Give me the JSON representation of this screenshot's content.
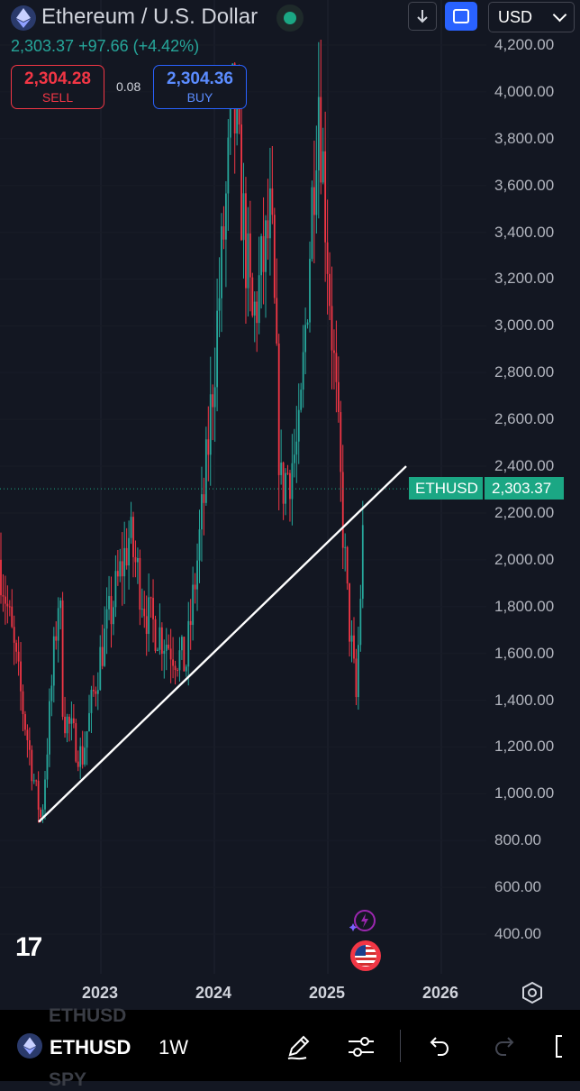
{
  "header": {
    "title": "Ethereum / U.S. Dollar",
    "change_line": "2,303.37  +97.66 (+4.42%)",
    "currency": "USD",
    "sell_price": "2,304.28",
    "sell_label": "SELL",
    "spread": "0.08",
    "buy_price": "2,304.36",
    "buy_label": "BUY"
  },
  "price_tag": {
    "symbol": "ETHUSD",
    "price": "2,303.37"
  },
  "y_axis": [
    "4,200.00",
    "4,000.00",
    "3,800.00",
    "3,600.00",
    "3,400.00",
    "3,200.00",
    "3,000.00",
    "2,800.00",
    "2,600.00",
    "2,400.00",
    "2,200.00",
    "2,000.00",
    "1,800.00",
    "1,600.00",
    "1,400.00",
    "1,200.00",
    "1,000.00",
    "800.00",
    "600.00",
    "400.00"
  ],
  "x_axis": [
    "2023",
    "2024",
    "2025",
    "2026"
  ],
  "toolbar": {
    "symbol": "ETHUSD",
    "interval": "1W",
    "ghost_above": "ETHUSD",
    "ghost_below": "SPY"
  },
  "logo": "17",
  "colors": {
    "up": "#26a69a",
    "down": "#f23645",
    "accent": "#2962ff",
    "tag": "#1ba784"
  },
  "chart_data": {
    "type": "candlestick",
    "interval": "1W",
    "ylim": [
      400,
      4200
    ],
    "series": [
      {
        "name": "ETHUSD"
      }
    ],
    "last": 2303.37,
    "trendline": {
      "start": [
        "2022-06",
        880
      ],
      "end": [
        "2025-09",
        2400
      ]
    },
    "path": [
      [
        "2022-05",
        2000
      ],
      [
        "2022-06",
        1050
      ],
      [
        "2022-06",
        880
      ],
      [
        "2022-08",
        1900
      ],
      [
        "2022-09",
        1350
      ],
      [
        "2022-11",
        1150
      ],
      [
        "2023-01",
        1600
      ],
      [
        "2023-04",
        2100
      ],
      [
        "2023-06",
        1750
      ],
      [
        "2023-08",
        1650
      ],
      [
        "2023-10",
        1550
      ],
      [
        "2023-12",
        2300
      ],
      [
        "2024-03",
        3950
      ],
      [
        "2024-05",
        3000
      ],
      [
        "2024-07",
        3450
      ],
      [
        "2024-08",
        2300
      ],
      [
        "2024-10",
        2500
      ],
      [
        "2024-12",
        4050
      ],
      [
        "2025-01",
        3300
      ],
      [
        "2025-03",
        1850
      ],
      [
        "2025-04",
        1400
      ],
      [
        "2025-05",
        2303
      ]
    ]
  }
}
